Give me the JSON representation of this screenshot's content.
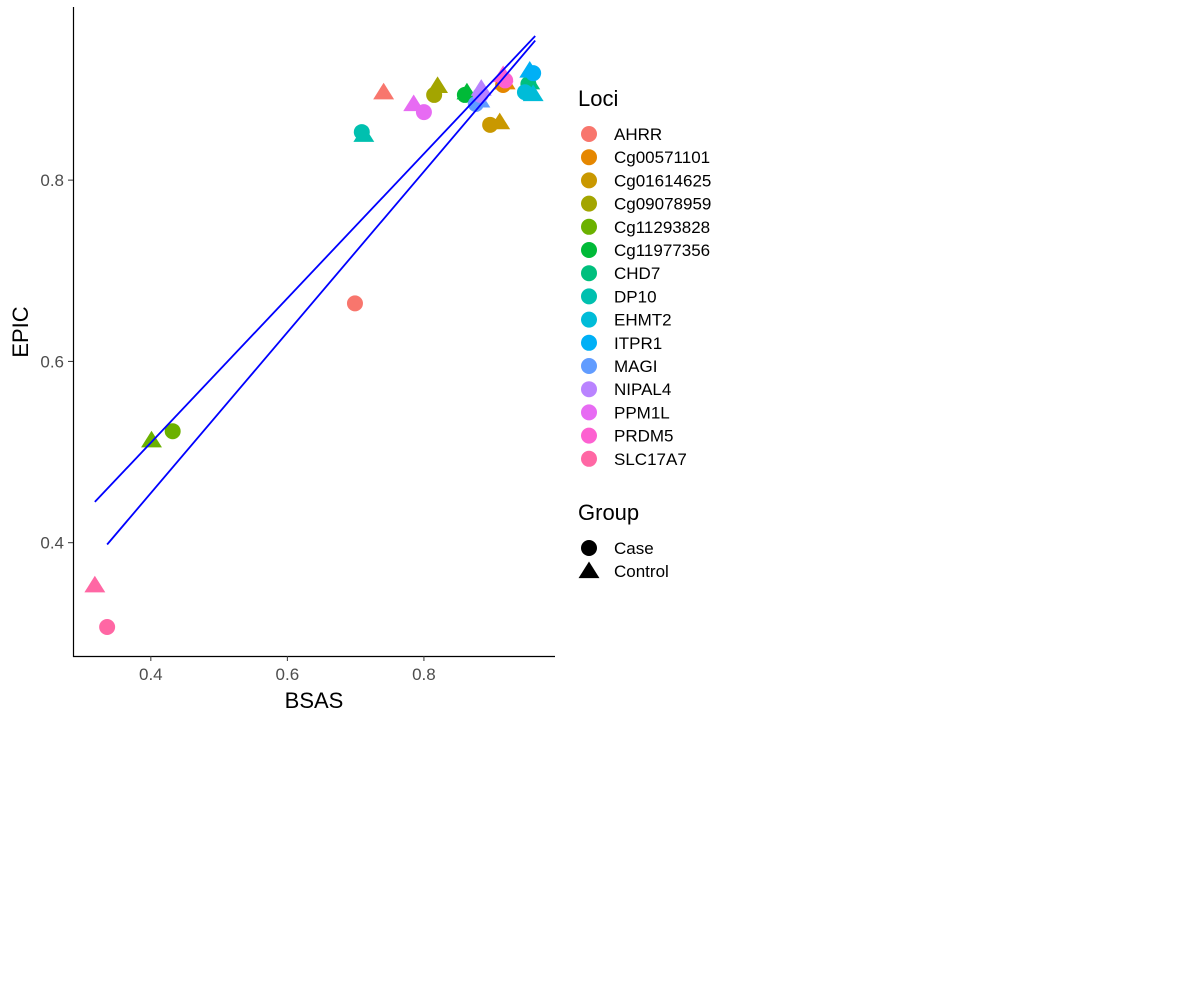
{
  "chart_data": {
    "type": "scatter",
    "xlabel": "BSAS",
    "ylabel": "EPIC",
    "xlim": [
      0.286,
      0.992
    ],
    "ylim": [
      0.275,
      0.991
    ],
    "xticks": [
      "0.4",
      "0.6",
      "0.8"
    ],
    "yticks": [
      "0.4",
      "0.6",
      "0.8"
    ],
    "grid": false,
    "legend_placement": "right",
    "color_legend": {
      "title": "Loci",
      "entries": [
        {
          "name": "AHRR",
          "color": "#F8766D"
        },
        {
          "name": "Cg00571101",
          "color": "#E58700"
        },
        {
          "name": "Cg01614625",
          "color": "#C99800"
        },
        {
          "name": "Cg09078959",
          "color": "#A3A500"
        },
        {
          "name": "Cg11293828",
          "color": "#6BB100"
        },
        {
          "name": "Cg11977356",
          "color": "#00BA38"
        },
        {
          "name": "CHD7",
          "color": "#00BF7D"
        },
        {
          "name": "DP10",
          "color": "#00C0AF"
        },
        {
          "name": "EHMT2",
          "color": "#00BCD8"
        },
        {
          "name": "ITPR1",
          "color": "#00B0F6"
        },
        {
          "name": "MAGI",
          "color": "#619CFF"
        },
        {
          "name": "NIPAL4",
          "color": "#B983FF"
        },
        {
          "name": "PPM1L",
          "color": "#E76BF3"
        },
        {
          "name": "PRDM5",
          "color": "#FD61D1"
        },
        {
          "name": "SLC17A7",
          "color": "#FF67A4"
        }
      ]
    },
    "shape_legend": {
      "title": "Group",
      "entries": [
        {
          "name": "Case",
          "shape": "circle"
        },
        {
          "name": "Control",
          "shape": "triangle"
        }
      ]
    },
    "points": [
      {
        "locus": "AHRR",
        "group": "Case",
        "x": 0.699,
        "y": 0.664
      },
      {
        "locus": "AHRR",
        "group": "Control",
        "x": 0.741,
        "y": 0.897
      },
      {
        "locus": "Cg00571101",
        "group": "Case",
        "x": 0.916,
        "y": 0.905
      },
      {
        "locus": "Cg00571101",
        "group": "Control",
        "x": 0.919,
        "y": 0.908
      },
      {
        "locus": "Cg01614625",
        "group": "Case",
        "x": 0.897,
        "y": 0.861
      },
      {
        "locus": "Cg01614625",
        "group": "Control",
        "x": 0.911,
        "y": 0.864
      },
      {
        "locus": "Cg09078959",
        "group": "Case",
        "x": 0.815,
        "y": 0.894
      },
      {
        "locus": "Cg09078959",
        "group": "Control",
        "x": 0.82,
        "y": 0.904
      },
      {
        "locus": "Cg11293828",
        "group": "Case",
        "x": 0.432,
        "y": 0.523
      },
      {
        "locus": "Cg11293828",
        "group": "Control",
        "x": 0.401,
        "y": 0.513
      },
      {
        "locus": "Cg11977356",
        "group": "Case",
        "x": 0.86,
        "y": 0.894
      },
      {
        "locus": "Cg11977356",
        "group": "Control",
        "x": 0.863,
        "y": 0.897
      },
      {
        "locus": "CHD7",
        "group": "Case",
        "x": 0.953,
        "y": 0.906
      },
      {
        "locus": "CHD7",
        "group": "Control",
        "x": 0.955,
        "y": 0.908
      },
      {
        "locus": "DP10",
        "group": "Case",
        "x": 0.709,
        "y": 0.853
      },
      {
        "locus": "DP10",
        "group": "Control",
        "x": 0.712,
        "y": 0.85
      },
      {
        "locus": "EHMT2",
        "group": "Case",
        "x": 0.948,
        "y": 0.897
      },
      {
        "locus": "EHMT2",
        "group": "Control",
        "x": 0.96,
        "y": 0.895
      },
      {
        "locus": "ITPR1",
        "group": "Case",
        "x": 0.96,
        "y": 0.918
      },
      {
        "locus": "ITPR1",
        "group": "Control",
        "x": 0.955,
        "y": 0.921
      },
      {
        "locus": "MAGI",
        "group": "Case",
        "x": 0.876,
        "y": 0.884
      },
      {
        "locus": "MAGI",
        "group": "Control",
        "x": 0.882,
        "y": 0.888
      },
      {
        "locus": "NIPAL4",
        "group": "Case",
        "x": 0.883,
        "y": 0.894
      },
      {
        "locus": "NIPAL4",
        "group": "Control",
        "x": 0.884,
        "y": 0.901
      },
      {
        "locus": "PPM1L",
        "group": "Case",
        "x": 0.8,
        "y": 0.875
      },
      {
        "locus": "PPM1L",
        "group": "Control",
        "x": 0.785,
        "y": 0.884
      },
      {
        "locus": "PRDM5",
        "group": "Case",
        "x": 0.919,
        "y": 0.91
      },
      {
        "locus": "PRDM5",
        "group": "Control",
        "x": 0.916,
        "y": 0.916
      },
      {
        "locus": "SLC17A7",
        "group": "Case",
        "x": 0.336,
        "y": 0.307
      },
      {
        "locus": "SLC17A7",
        "group": "Control",
        "x": 0.318,
        "y": 0.353
      }
    ],
    "fit_lines": [
      {
        "color": "#0000FF",
        "x": [
          0.318,
          0.963
        ],
        "y": [
          0.445,
          0.959
        ]
      },
      {
        "color": "#0000FF",
        "x": [
          0.336,
          0.963
        ],
        "y": [
          0.398,
          0.954
        ]
      }
    ]
  }
}
